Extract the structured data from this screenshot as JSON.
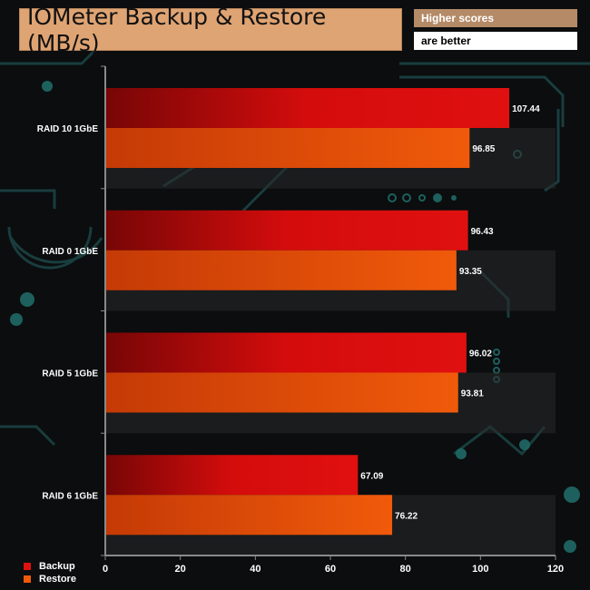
{
  "header": {
    "title": "IOMeter Backup & Restore (MB/s)",
    "note_line1": "Higher scores",
    "note_line2": "are better"
  },
  "chart_data": {
    "type": "bar",
    "orientation": "horizontal",
    "title": "IOMeter Backup & Restore (MB/s)",
    "categories": [
      "RAID 10 1GbE",
      "RAID 0 1GbE",
      "RAID 5 1GbE",
      "RAID 6 1GbE"
    ],
    "series": [
      {
        "name": "Backup",
        "values": [
          107.44,
          96.43,
          96.02,
          67.09
        ],
        "color": "#e01010"
      },
      {
        "name": "Restore",
        "values": [
          96.85,
          93.35,
          93.81,
          76.22
        ],
        "color": "#f05a0a"
      }
    ],
    "xlim": [
      0,
      120
    ],
    "xticks": [
      0,
      20,
      40,
      60,
      80,
      100,
      120
    ],
    "tick_labels": [
      "0",
      "20",
      "40",
      "60",
      "80",
      "100",
      "120"
    ],
    "data_labels": [
      [
        "107.44",
        "96.43",
        "96.02",
        "67.09"
      ],
      [
        "96.85",
        "93.35",
        "93.81",
        "76.22"
      ]
    ],
    "legend_position": "bottom-left",
    "grid": false
  }
}
